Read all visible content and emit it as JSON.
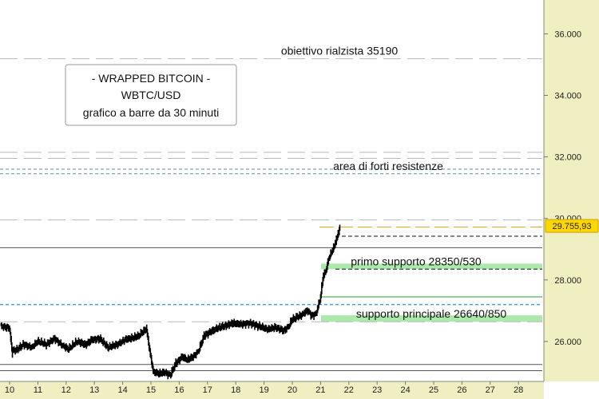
{
  "chart_data": {
    "type": "bar",
    "bar_interval": "30m",
    "title_lines": [
      "- WRAPPED BITCOIN -",
      "WBTC/USD",
      "grafico a barre da 30 minuti"
    ],
    "ylim": [
      24700,
      37100
    ],
    "y_ticks": [
      "26.000",
      "28.000",
      "30.000",
      "32.000",
      "34.000",
      "36.000"
    ],
    "y_tick_values": [
      26000,
      28000,
      30000,
      32000,
      34000,
      36000
    ],
    "x_ticks": [
      "10",
      "11",
      "12",
      "13",
      "14",
      "15",
      "16",
      "17",
      "18",
      "19",
      "20",
      "21",
      "22",
      "23",
      "24",
      "25",
      "26",
      "27",
      "28"
    ],
    "last_price": 29755.93,
    "last_price_label": "29.755,93",
    "colors": {
      "price_bars": "#000000",
      "axis_bg": "#efefc2",
      "support_band": "#9be59b",
      "last_price_tag": "#ffd700",
      "resistance_dash": "#5a8ab0",
      "support_dash": "#3da0e0",
      "last_price_line": "#e6a817"
    },
    "levels": [
      {
        "value": 35190,
        "style": "dashed-gray",
        "label": "obiettivo rialzista 35190"
      },
      {
        "value": 32150,
        "style": "dashed-gray",
        "label": ""
      },
      {
        "value": 31950,
        "style": "dashed-gray",
        "label": ""
      },
      {
        "value": 31600,
        "style": "dashed-blue",
        "label": ""
      },
      {
        "value": 31450,
        "style": "dashed-blue",
        "label": "area di forti resistenze"
      },
      {
        "value": 29950,
        "style": "dashed-gray",
        "label": ""
      },
      {
        "value": 29720,
        "style": "dashed-orange",
        "label": ""
      },
      {
        "value": 29420,
        "style": "dashed-black",
        "label": ""
      },
      {
        "value": 29050,
        "style": "solid-gray",
        "label": ""
      },
      {
        "value": 28350,
        "style": "dashed-black",
        "label": "primo supporto 28350/530"
      },
      {
        "value": 27450,
        "style": "solid-green",
        "label": ""
      },
      {
        "value": 27200,
        "style": "dashed-blue",
        "label": ""
      },
      {
        "value": 26640,
        "style": "dashed-gray",
        "label": "supporto principale 26640/850"
      },
      {
        "value": 25250,
        "style": "solid-gray",
        "label": ""
      },
      {
        "value": 25050,
        "style": "solid-gray",
        "label": ""
      }
    ],
    "bands": [
      {
        "from": 28350,
        "to": 28530,
        "label_ref": "primo supporto 28350/530"
      },
      {
        "from": 26640,
        "to": 26850,
        "label_ref": "supporto principale 26640/850"
      }
    ],
    "series": [
      {
        "x": [
          9.7,
          10.0,
          10.1,
          10.3,
          10.5,
          10.8,
          11.0,
          11.3,
          11.6,
          11.9,
          12.1,
          12.4,
          12.7,
          12.9,
          13.2,
          13.5,
          13.8,
          14.1,
          14.3,
          14.6,
          14.85,
          15.0,
          15.1,
          15.3,
          15.5,
          15.7,
          15.9,
          16.1,
          16.3,
          16.5,
          16.7,
          16.9,
          17.1,
          17.3,
          17.6,
          17.9,
          18.2,
          18.5,
          18.8,
          19.1,
          19.4,
          19.7,
          19.9,
          20.0,
          20.2,
          20.4,
          20.55,
          20.7,
          20.85,
          21.0,
          21.1,
          21.2,
          21.3,
          21.4,
          21.5,
          21.6,
          21.7
        ],
        "y": [
          26500,
          26450,
          25700,
          25750,
          25900,
          25800,
          26000,
          25900,
          26100,
          25850,
          25750,
          26000,
          25900,
          26050,
          26100,
          25800,
          25900,
          26050,
          26100,
          26200,
          26400,
          25500,
          25000,
          24950,
          25000,
          24900,
          25300,
          25500,
          25400,
          25500,
          25700,
          26200,
          26300,
          26400,
          26500,
          26600,
          26550,
          26600,
          26500,
          26400,
          26450,
          26350,
          26500,
          26700,
          26800,
          26900,
          27000,
          26850,
          26900,
          27400,
          28100,
          28300,
          28700,
          28900,
          29100,
          29400,
          29750
        ]
      }
    ]
  }
}
